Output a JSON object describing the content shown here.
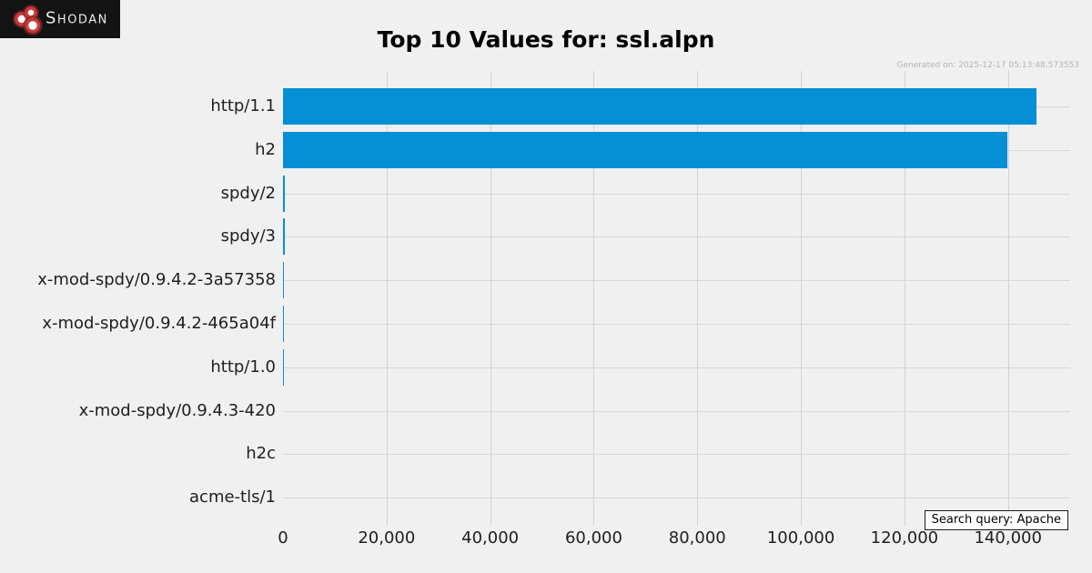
{
  "header": {
    "logo_text": "Shodan",
    "title": "Top 10 Values for: ssl.alpn",
    "generated_label": "Generated on: 2025-12-17 05:13:48.573553"
  },
  "footer": {
    "search_query_label": "Search query: Apache"
  },
  "colors": {
    "bar_blue": "#058fd5",
    "background": "#f0f0f0",
    "logo_background": "#131313",
    "logo_red": "#c93b3b",
    "grid_vertical": "#d2d2d2",
    "grid_horizontal": "#d7d7d7",
    "axis_text": "#202020",
    "generated_text": "#b4b4b4"
  },
  "chart_data": {
    "type": "bar",
    "orientation": "horizontal",
    "title": "Top 10 Values for: ssl.alpn",
    "categories": [
      "http/1.1",
      "h2",
      "spdy/2",
      "spdy/3",
      "x-mod-spdy/0.9.4.2-3a57358",
      "x-mod-spdy/0.9.4.2-465a04f",
      "http/1.0",
      "x-mod-spdy/0.9.4.3-420",
      "h2c",
      "acme-tls/1"
    ],
    "values": [
      145500,
      139800,
      400,
      350,
      30,
      22,
      16,
      10,
      6,
      3
    ],
    "xlim": [
      0,
      152000
    ],
    "xticks": [
      0,
      20000,
      40000,
      60000,
      80000,
      100000,
      120000,
      140000
    ],
    "xtick_labels": [
      "0",
      "20,000",
      "40,000",
      "60,000",
      "80,000",
      "100,000",
      "120,000",
      "140,000"
    ],
    "xlabel": "",
    "ylabel": "",
    "grid": true,
    "legend": false
  }
}
